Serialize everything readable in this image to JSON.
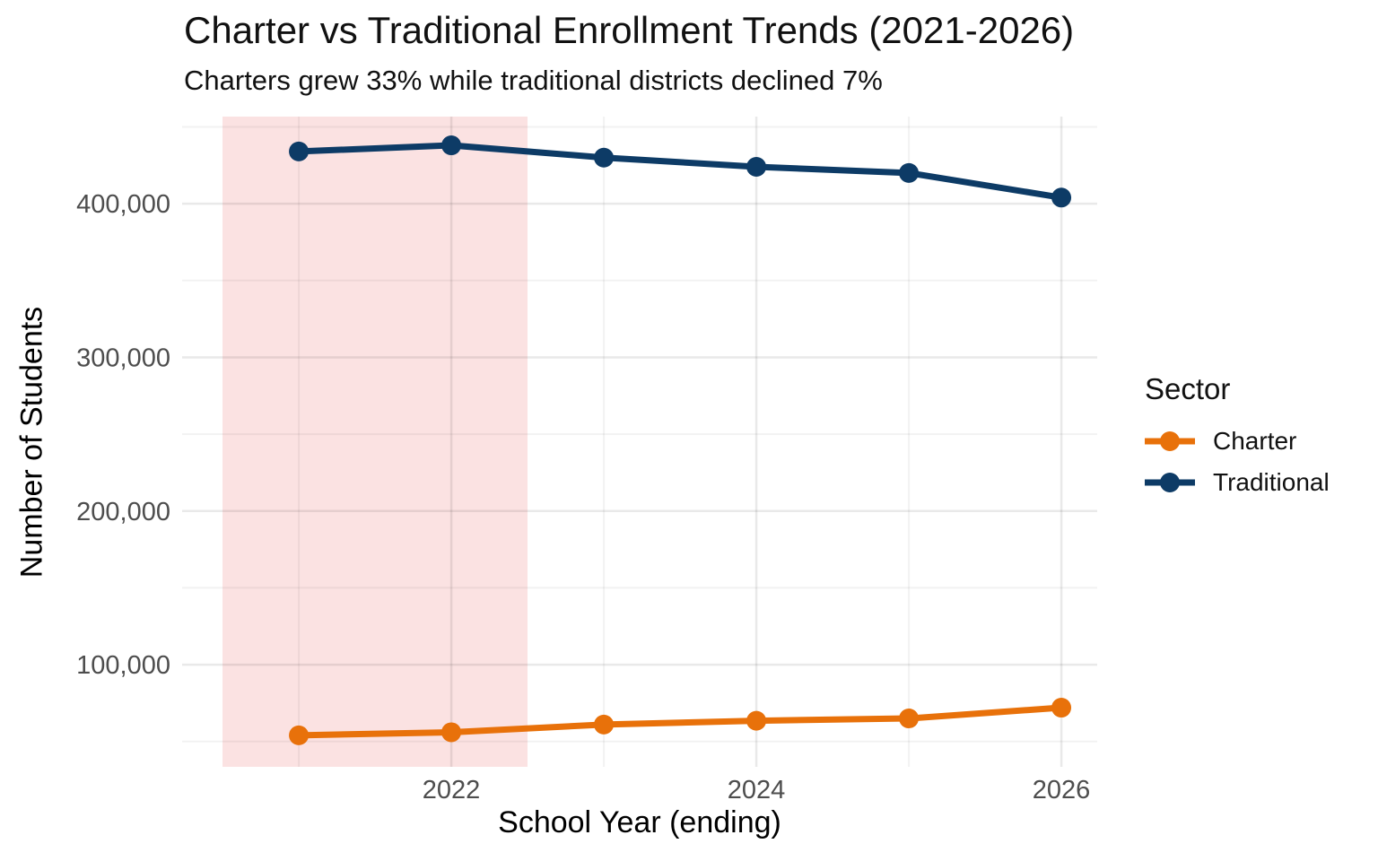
{
  "chart_data": {
    "type": "line",
    "title": "Charter vs Traditional Enrollment Trends (2021-2026)",
    "subtitle": "Charters grew 33% while traditional districts declined 7%",
    "xlabel": "School Year (ending)",
    "ylabel": "Number of Students",
    "x": [
      2021,
      2022,
      2023,
      2024,
      2025,
      2026
    ],
    "series": [
      {
        "name": "Charter",
        "color": "#E8710A",
        "values": [
          54000,
          56000,
          61000,
          63500,
          65000,
          72000
        ]
      },
      {
        "name": "Traditional",
        "color": "#0D3B66",
        "values": [
          434000,
          438000,
          430000,
          424000,
          420000,
          404000
        ]
      }
    ],
    "x_ticks": {
      "values": [
        2022,
        2024,
        2026
      ],
      "labels": [
        "2022",
        "2024",
        "2026"
      ]
    },
    "x_minor_gridlines": [
      2021,
      2023,
      2025
    ],
    "y_ticks": {
      "values": [
        100000,
        200000,
        300000,
        400000
      ],
      "labels": [
        "100,000",
        "200,000",
        "300,000",
        "400,000"
      ]
    },
    "y_minor_gridlines": [
      50000,
      150000,
      250000,
      350000,
      450000
    ],
    "x_domain": [
      2020.235,
      2026.235
    ],
    "y_domain": [
      33500,
      456700
    ],
    "shaded_region": {
      "x_start": 2020.5,
      "x_end": 2022.5,
      "color": "#FBE2E2"
    },
    "grid": true,
    "legend": {
      "title": "Sector",
      "position": "right"
    },
    "style": {
      "tick_label_color": "#4D4D4D",
      "major_grid_color": "rgba(0,0,0,0.085)",
      "minor_grid_color": "rgba(0,0,0,0.05)",
      "background": "#FFFFFF"
    }
  }
}
